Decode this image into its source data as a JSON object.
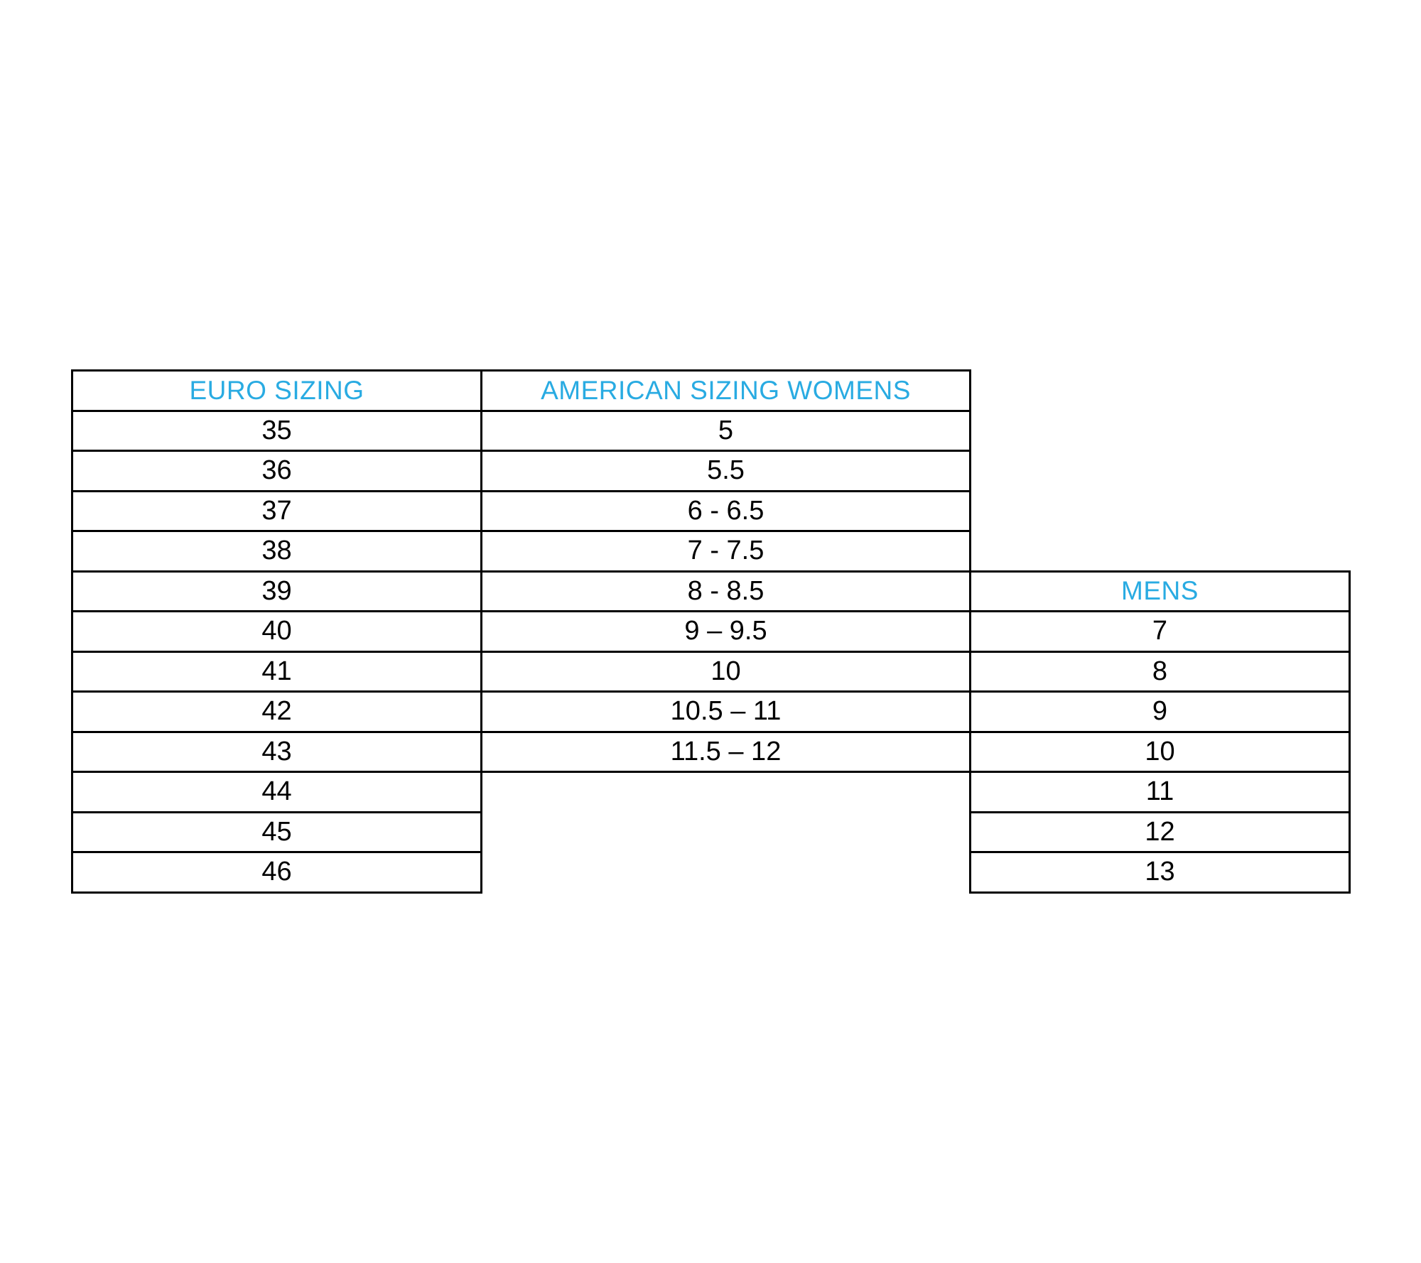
{
  "page": {
    "background": "#ffffff"
  },
  "colors": {
    "header_text": "#29abe2",
    "value_text": "#000000",
    "table_border": "#000000"
  },
  "chart_data": {
    "type": "table",
    "layout": {
      "grid_rows": 13,
      "mens_column_starts_at_euro_row": "39",
      "womens_column_ends_at_euro_row": "43",
      "legend_position": "none",
      "grid": "on"
    },
    "euro": {
      "header": "EURO SIZING",
      "values": [
        "35",
        "36",
        "37",
        "38",
        "39",
        "40",
        "41",
        "42",
        "43",
        "44",
        "45",
        "46"
      ]
    },
    "womens": {
      "header": "AMERICAN SIZING WOMENS",
      "values": [
        "5",
        "5.5",
        "6 - 6.5",
        "7 - 7.5",
        "8 - 8.5",
        "9 – 9.5",
        "10",
        "10.5 – 11",
        "11.5 – 12"
      ]
    },
    "mens": {
      "header": "MENS",
      "values": [
        "7",
        "8",
        "9",
        "10",
        "11",
        "12",
        "13"
      ]
    }
  }
}
